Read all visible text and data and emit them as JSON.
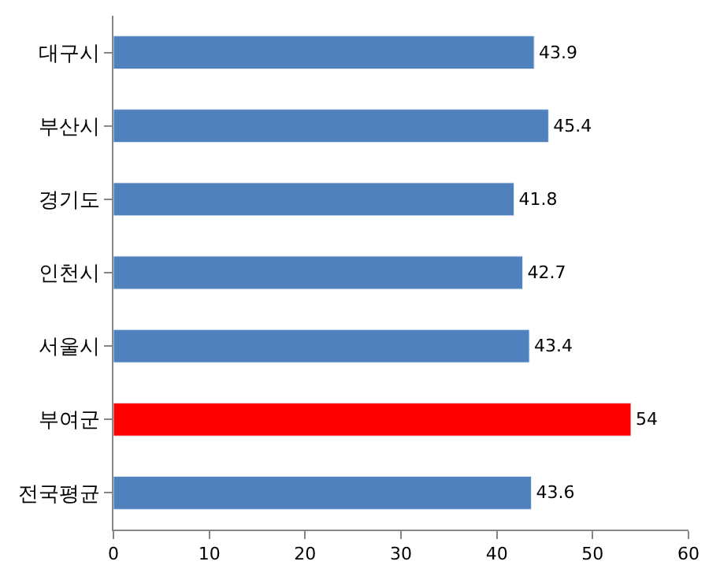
{
  "chart_data": {
    "type": "bar",
    "orientation": "horizontal",
    "categories": [
      "대구시",
      "부산시",
      "경기도",
      "인천시",
      "서울시",
      "부여군",
      "전국평균"
    ],
    "values": [
      43.9,
      45.4,
      41.8,
      42.7,
      43.4,
      54,
      43.6
    ],
    "colors": [
      "#4f81bd",
      "#4f81bd",
      "#4f81bd",
      "#4f81bd",
      "#4f81bd",
      "#ff0000",
      "#4f81bd"
    ],
    "xlim": [
      0,
      60
    ],
    "xticks": [
      0,
      10,
      20,
      30,
      40,
      50,
      60
    ],
    "data_labels": true
  }
}
